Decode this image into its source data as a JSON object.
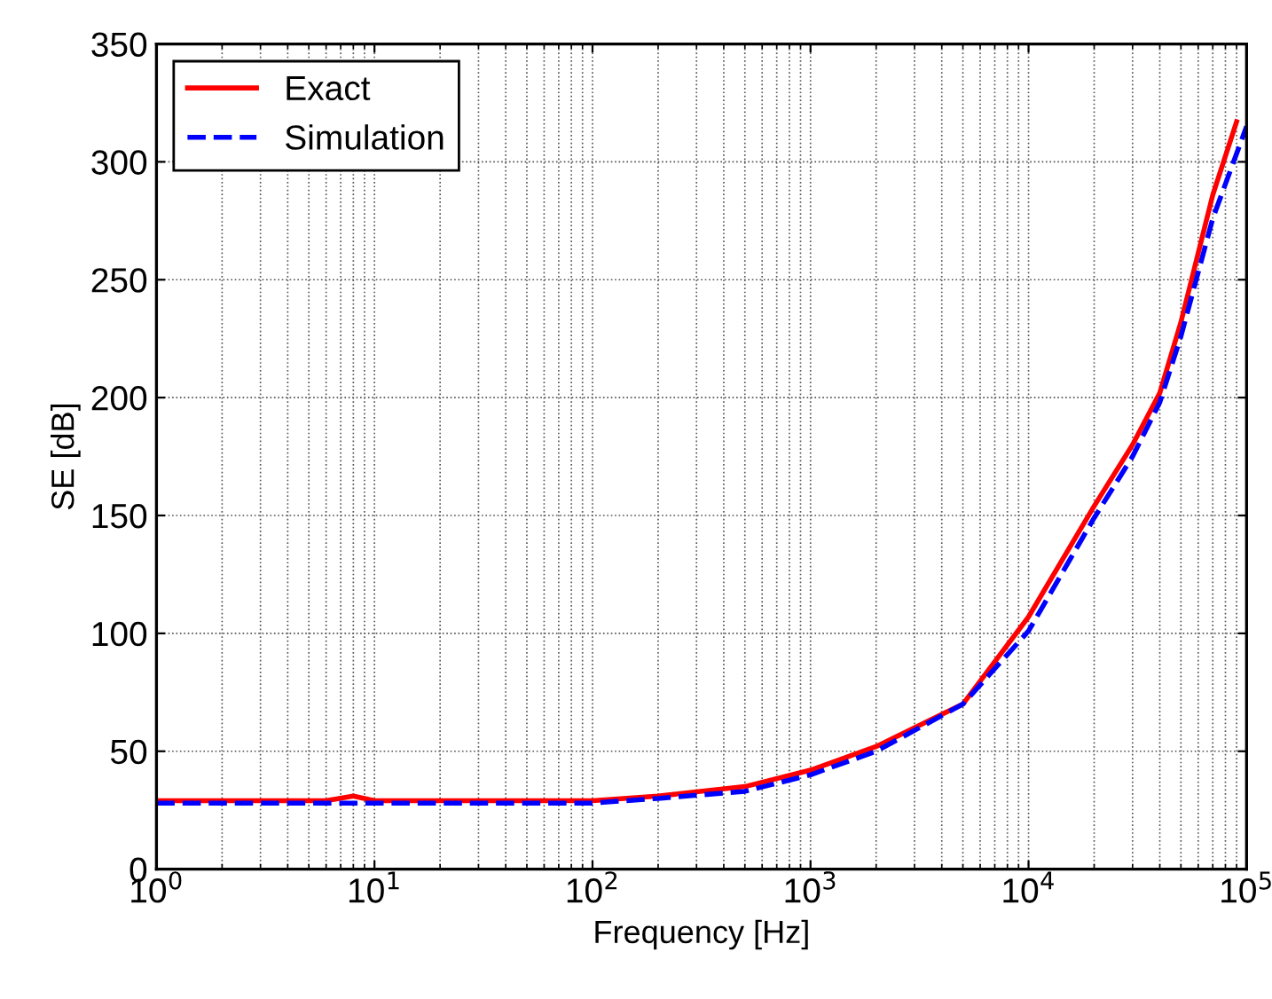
{
  "chart_data": {
    "type": "line",
    "xlabel": "Frequency [Hz]",
    "ylabel": "SE [dB]",
    "log": "x",
    "xlim": [
      1,
      100000
    ],
    "ylim": [
      0,
      350
    ],
    "xticks": [
      {
        "value": 1,
        "label": "10$^{0}$"
      },
      {
        "value": 10,
        "label": "10$^{1}$"
      },
      {
        "value": 100,
        "label": "10$^{2}$"
      },
      {
        "value": 1000,
        "label": "10$^{3}$"
      },
      {
        "value": 10000,
        "label": "10$^{4}$"
      },
      {
        "value": 100000,
        "label": "10$^{5}$"
      }
    ],
    "yticks": [
      0,
      50,
      100,
      150,
      200,
      250,
      300,
      350
    ],
    "grid": true,
    "legend": "top left",
    "series": [
      {
        "name": "Exact",
        "color": "#ff0000",
        "line_style": "solid",
        "x": [
          1,
          6,
          8,
          10,
          20,
          100,
          200,
          500,
          1000,
          2000,
          5000,
          10000,
          20000,
          30000,
          40000,
          50000,
          70000,
          90000
        ],
        "values": [
          29,
          29,
          31,
          29,
          29,
          29,
          31,
          35,
          42,
          52,
          70,
          107,
          154,
          180,
          202,
          232,
          286,
          317
        ]
      },
      {
        "name": "Simulation",
        "color": "#0000ff",
        "line_style": "dashed",
        "x": [
          1,
          10,
          100,
          200,
          500,
          1000,
          2000,
          5000,
          10000,
          20000,
          30000,
          40000,
          50000,
          70000,
          100000
        ],
        "values": [
          28,
          28,
          28,
          30,
          33,
          40,
          50,
          70,
          101,
          149,
          175,
          198,
          226,
          276,
          315
        ]
      }
    ]
  }
}
